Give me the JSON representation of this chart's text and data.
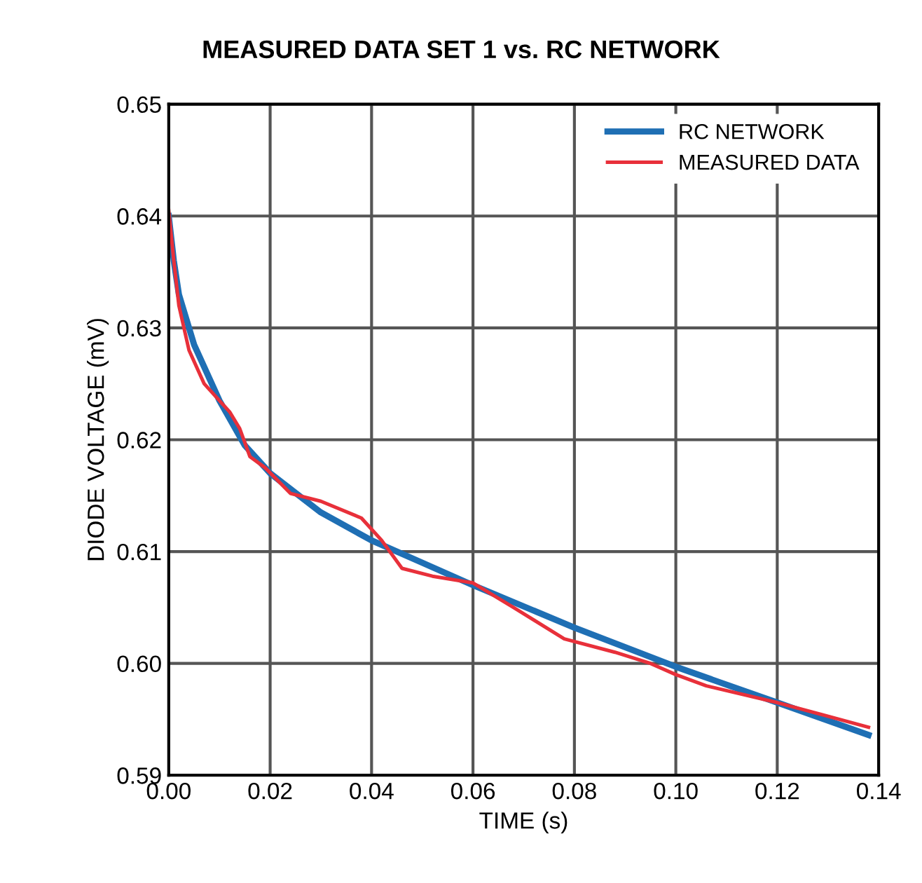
{
  "chart_data": {
    "type": "line",
    "title": "MEASURED DATA SET 1 vs. RC NETWORK",
    "xlabel": "TIME (s)",
    "ylabel": "DIODE VOLTAGE (mV)",
    "xlim": [
      0,
      0.14
    ],
    "xticks": [
      {
        "value": 0,
        "label": "0.00"
      },
      {
        "value": 0.02,
        "label": "0.02"
      },
      {
        "value": 0.04,
        "label": "0.04"
      },
      {
        "value": 0.06,
        "label": "0.06"
      },
      {
        "value": 0.08,
        "label": "0.08"
      },
      {
        "value": 0.1,
        "label": "0.10"
      },
      {
        "value": 0.12,
        "label": "0.12"
      },
      {
        "value": 0.14,
        "label": "0.14"
      }
    ],
    "ylim": [
      0.59,
      0.65
    ],
    "yticks": [
      0.59,
      {
        "value": 0.6,
        "label": "0.60"
      },
      0.61,
      0.62,
      0.63,
      0.64,
      0.65
    ],
    "grid": true,
    "legend": "top right",
    "marker": "none",
    "line_style": "solid",
    "series": [
      {
        "name": "RC NETWORK",
        "color": "#1f6fb4",
        "x": [
          0,
          0.001,
          0.002,
          0.005,
          0.01,
          0.015,
          0.02,
          0.03,
          0.04,
          0.05,
          0.06,
          0.08,
          0.1,
          0.12,
          0.138
        ],
        "values": [
          0.64,
          0.636,
          0.633,
          0.6285,
          0.6235,
          0.6195,
          0.617,
          0.6135,
          0.611,
          0.609,
          0.607,
          0.6032,
          0.5997,
          0.5965,
          0.5936
        ]
      },
      {
        "name": "MEASURED DATA",
        "color": "#e8303a",
        "x": [
          0,
          0.001,
          0.002,
          0.004,
          0.007,
          0.01,
          0.012,
          0.014,
          0.016,
          0.019,
          0.024,
          0.03,
          0.038,
          0.042,
          0.046,
          0.052,
          0.06,
          0.068,
          0.078,
          0.088,
          0.095,
          0.1,
          0.106,
          0.12,
          0.138
        ],
        "values": [
          0.6405,
          0.636,
          0.632,
          0.628,
          0.625,
          0.6235,
          0.6225,
          0.621,
          0.6185,
          0.6175,
          0.6152,
          0.6145,
          0.613,
          0.611,
          0.6085,
          0.6078,
          0.6072,
          0.605,
          0.6022,
          0.601,
          0.6,
          0.599,
          0.598,
          0.5965,
          0.5943
        ]
      }
    ]
  }
}
